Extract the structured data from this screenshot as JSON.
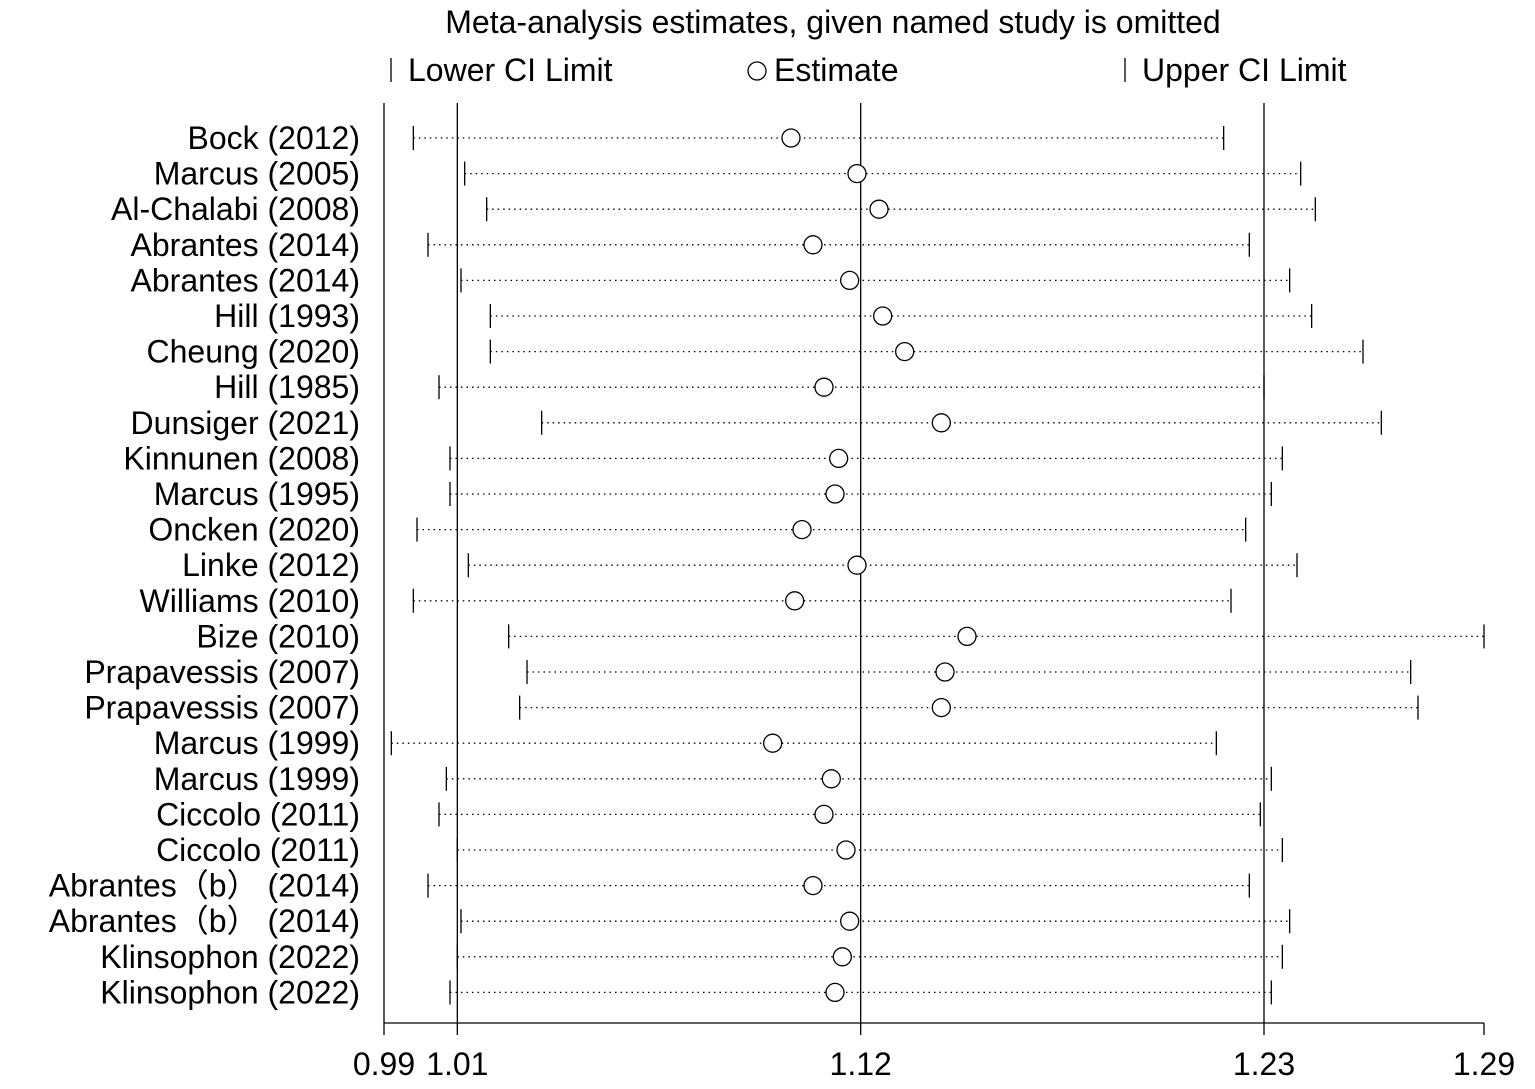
{
  "chart_data": {
    "type": "forest",
    "title": "Meta-analysis estimates, given named study is omitted",
    "legend": {
      "lower": "Lower CI Limit",
      "estimate": "Estimate",
      "upper": "Upper CI Limit",
      "position": "top"
    },
    "xticks": [
      0.99,
      1.01,
      1.12,
      1.23,
      1.29
    ],
    "xtick_labels": [
      "0.99",
      "1.01",
      "1.12",
      "1.23",
      "1.29"
    ],
    "xlim": [
      0.99,
      1.29
    ],
    "reference_lines": [
      1.01,
      1.12,
      1.23
    ],
    "studies": [
      {
        "label": "Bock (2012)",
        "lower": 0.998,
        "estimate": 1.101,
        "upper": 1.219
      },
      {
        "label": "Marcus (2005)",
        "lower": 1.012,
        "estimate": 1.119,
        "upper": 1.24
      },
      {
        "label": "Al-Chalabi (2008)",
        "lower": 1.018,
        "estimate": 1.125,
        "upper": 1.244
      },
      {
        "label": "Abrantes (2014)",
        "lower": 1.002,
        "estimate": 1.107,
        "upper": 1.226
      },
      {
        "label": "Abrantes (2014)",
        "lower": 1.011,
        "estimate": 1.117,
        "upper": 1.237
      },
      {
        "label": "Hill (1993)",
        "lower": 1.019,
        "estimate": 1.126,
        "upper": 1.243
      },
      {
        "label": "Cheung (2020)",
        "lower": 1.019,
        "estimate": 1.132,
        "upper": 1.257
      },
      {
        "label": "Hill (1985)",
        "lower": 1.005,
        "estimate": 1.11,
        "upper": 1.23
      },
      {
        "label": "Dunsiger (2021)",
        "lower": 1.033,
        "estimate": 1.142,
        "upper": 1.262
      },
      {
        "label": "Kinnunen (2008)",
        "lower": 1.008,
        "estimate": 1.114,
        "upper": 1.235
      },
      {
        "label": "Marcus (1995)",
        "lower": 1.008,
        "estimate": 1.113,
        "upper": 1.232
      },
      {
        "label": "Oncken (2020)",
        "lower": 0.999,
        "estimate": 1.104,
        "upper": 1.225
      },
      {
        "label": "Linke (2012)",
        "lower": 1.013,
        "estimate": 1.119,
        "upper": 1.239
      },
      {
        "label": "Williams (2010)",
        "lower": 0.998,
        "estimate": 1.102,
        "upper": 1.221
      },
      {
        "label": "Bize (2010)",
        "lower": 1.024,
        "estimate": 1.149,
        "upper": 1.29
      },
      {
        "label": "Prapavessis (2007)",
        "lower": 1.029,
        "estimate": 1.143,
        "upper": 1.27
      },
      {
        "label": "Prapavessis (2007)",
        "lower": 1.027,
        "estimate": 1.142,
        "upper": 1.272
      },
      {
        "label": "Marcus (1999)",
        "lower": 0.992,
        "estimate": 1.096,
        "upper": 1.217
      },
      {
        "label": "Marcus (1999)",
        "lower": 1.007,
        "estimate": 1.112,
        "upper": 1.232
      },
      {
        "label": "Ciccolo (2011)",
        "lower": 1.005,
        "estimate": 1.11,
        "upper": 1.229
      },
      {
        "label": "Ciccolo (2011)",
        "lower": 1.01,
        "estimate": 1.116,
        "upper": 1.235
      },
      {
        "label": "Abrantes（b） (2014)",
        "lower": 1.002,
        "estimate": 1.107,
        "upper": 1.226
      },
      {
        "label": "Abrantes（b） (2014)",
        "lower": 1.011,
        "estimate": 1.117,
        "upper": 1.237
      },
      {
        "label": "Klinsophon (2022)",
        "lower": 1.01,
        "estimate": 1.115,
        "upper": 1.235
      },
      {
        "label": "Klinsophon (2022)",
        "lower": 1.008,
        "estimate": 1.113,
        "upper": 1.232
      }
    ]
  }
}
